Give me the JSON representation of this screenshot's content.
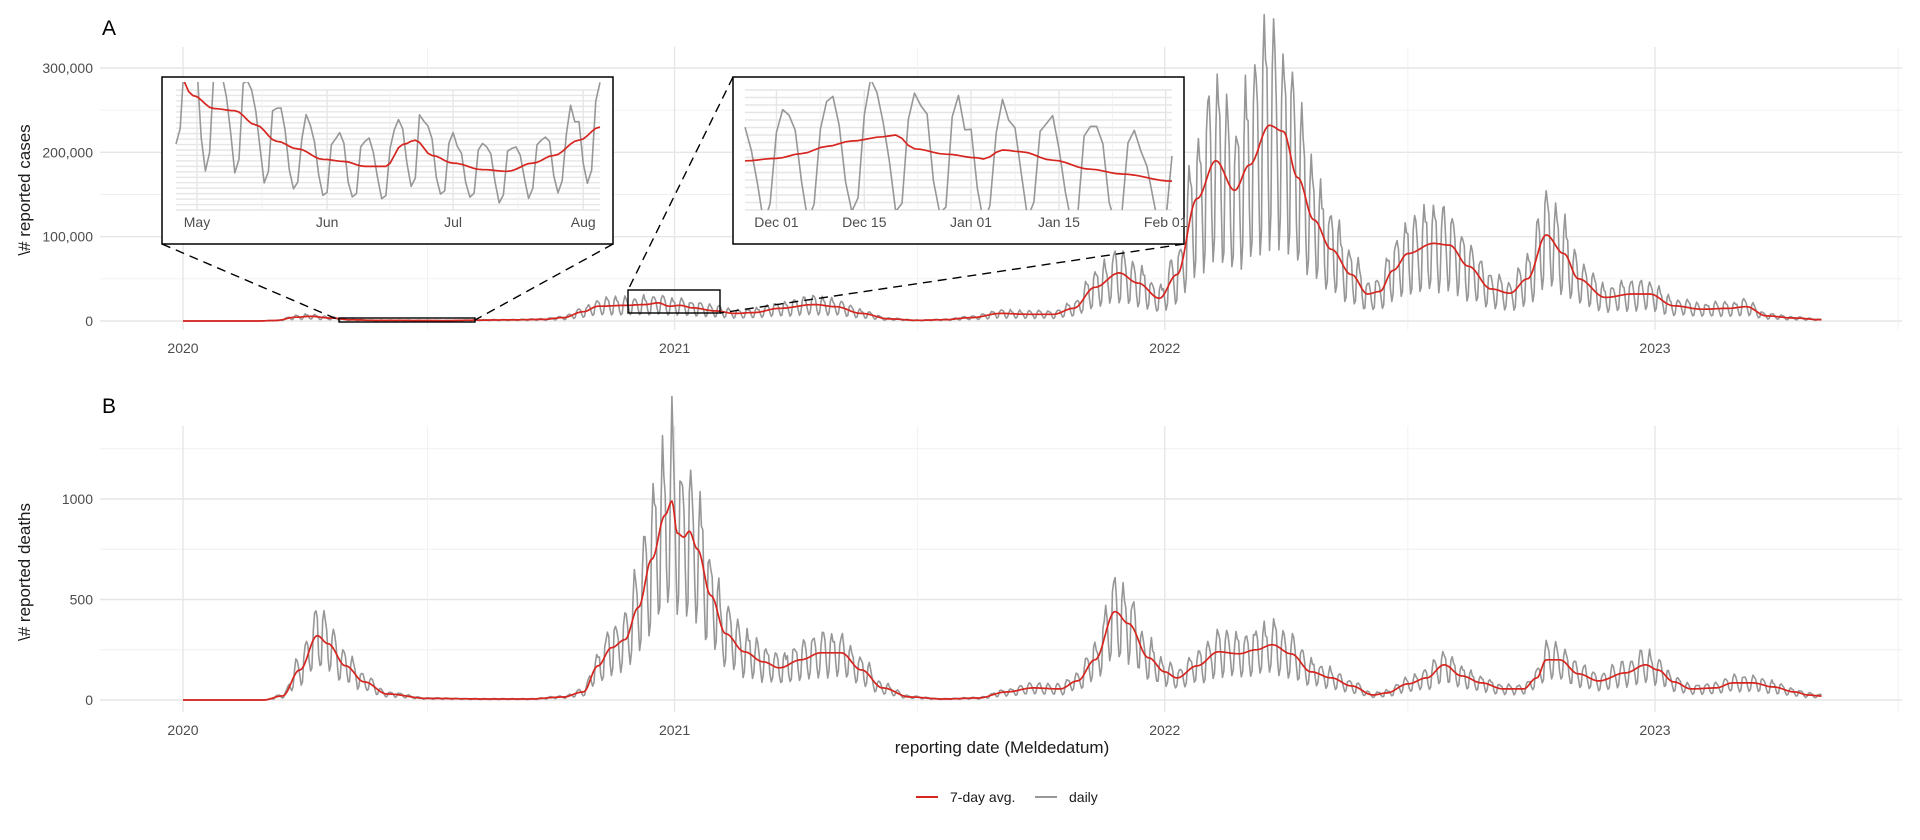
{
  "chart_data": [
    {
      "id": "A",
      "type": "line",
      "panel_label": "A",
      "title": "",
      "xlabel": "",
      "ylabel": "\\# reported cases",
      "x_type": "date",
      "xlim": [
        "2019-10-01",
        "2024-03-31"
      ],
      "ylim": [
        -12000,
        330000
      ],
      "yticks": [
        0,
        100000,
        200000,
        300000
      ],
      "ytick_labels": [
        "0",
        "100,000",
        "200,000",
        "300,000"
      ],
      "xticks": [
        "2020-01-01",
        "2021-01-01",
        "2022-01-01",
        "2023-01-01"
      ],
      "xtick_labels": [
        "2020",
        "2021",
        "2022",
        "2023"
      ],
      "grid": true,
      "weekly_amplitude": 0.55,
      "series": [
        {
          "name": "7-day avg.",
          "color": "#d7251f",
          "points": [
            [
              "2020-01-01",
              0
            ],
            [
              "2020-02-25",
              0
            ],
            [
              "2020-03-10",
              600
            ],
            [
              "2020-03-25",
              4500
            ],
            [
              "2020-04-05",
              5500
            ],
            [
              "2020-04-20",
              3500
            ],
            [
              "2020-05-05",
              1400
            ],
            [
              "2020-05-25",
              700
            ],
            [
              "2020-06-20",
              650
            ],
            [
              "2020-07-15",
              500
            ],
            [
              "2020-08-10",
              1100
            ],
            [
              "2020-09-01",
              1300
            ],
            [
              "2020-09-25",
              1900
            ],
            [
              "2020-10-10",
              4000
            ],
            [
              "2020-10-25",
              11000
            ],
            [
              "2020-11-05",
              17500
            ],
            [
              "2020-11-25",
              18500
            ],
            [
              "2020-12-10",
              19500
            ],
            [
              "2020-12-20",
              21500
            ],
            [
              "2020-12-28",
              17500
            ],
            [
              "2021-01-05",
              18500
            ],
            [
              "2021-01-15",
              15500
            ],
            [
              "2021-01-31",
              12000
            ],
            [
              "2021-02-15",
              9000
            ],
            [
              "2021-03-01",
              10000
            ],
            [
              "2021-03-20",
              15000
            ],
            [
              "2021-04-15",
              19500
            ],
            [
              "2021-05-01",
              17000
            ],
            [
              "2021-05-20",
              9000
            ],
            [
              "2021-06-10",
              2500
            ],
            [
              "2021-07-01",
              800
            ],
            [
              "2021-07-20",
              1500
            ],
            [
              "2021-08-10",
              4000
            ],
            [
              "2021-09-01",
              9000
            ],
            [
              "2021-09-20",
              8000
            ],
            [
              "2021-10-10",
              8000
            ],
            [
              "2021-10-25",
              15000
            ],
            [
              "2021-11-10",
              40000
            ],
            [
              "2021-11-28",
              57000
            ],
            [
              "2021-12-12",
              45000
            ],
            [
              "2021-12-28",
              27000
            ],
            [
              "2022-01-10",
              55000
            ],
            [
              "2022-01-25",
              145000
            ],
            [
              "2022-02-08",
              190000
            ],
            [
              "2022-02-22",
              155000
            ],
            [
              "2022-03-05",
              185000
            ],
            [
              "2022-03-20",
              232000
            ],
            [
              "2022-03-30",
              225000
            ],
            [
              "2022-04-10",
              170000
            ],
            [
              "2022-04-22",
              120000
            ],
            [
              "2022-05-05",
              85000
            ],
            [
              "2022-05-20",
              55000
            ],
            [
              "2022-06-01",
              32000
            ],
            [
              "2022-06-10",
              35000
            ],
            [
              "2022-06-20",
              60000
            ],
            [
              "2022-07-01",
              80000
            ],
            [
              "2022-07-20",
              92000
            ],
            [
              "2022-08-01",
              90000
            ],
            [
              "2022-08-15",
              65000
            ],
            [
              "2022-09-01",
              38000
            ],
            [
              "2022-09-15",
              33000
            ],
            [
              "2022-09-28",
              50000
            ],
            [
              "2022-10-12",
              102000
            ],
            [
              "2022-10-25",
              80000
            ],
            [
              "2022-11-05",
              50000
            ],
            [
              "2022-11-25",
              28000
            ],
            [
              "2022-12-15",
              32000
            ],
            [
              "2022-12-28",
              32000
            ],
            [
              "2023-01-15",
              18000
            ],
            [
              "2023-02-05",
              14000
            ],
            [
              "2023-02-25",
              15000
            ],
            [
              "2023-03-10",
              17000
            ],
            [
              "2023-03-25",
              6000
            ],
            [
              "2023-04-15",
              3500
            ],
            [
              "2023-05-05",
              1500
            ]
          ]
        },
        {
          "name": "daily",
          "color": "#979797",
          "derived_from": "7-day avg. with weekday reporting pattern"
        }
      ],
      "insets": [
        {
          "id": "A1",
          "xlim": [
            "2020-04-26",
            "2020-08-05"
          ],
          "xticks": [
            "2020-05-01",
            "2020-06-01",
            "2020-07-01",
            "2020-08-01"
          ],
          "xtick_labels": [
            "May",
            "Jun",
            "Jul",
            "Aug"
          ],
          "ylim": [
            200,
            1300
          ],
          "points_avg": [
            [
              "2020-04-26",
              1500
            ],
            [
              "2020-04-30",
              1250
            ],
            [
              "2020-05-05",
              1130
            ],
            [
              "2020-05-10",
              1110
            ],
            [
              "2020-05-15",
              980
            ],
            [
              "2020-05-20",
              830
            ],
            [
              "2020-05-25",
              760
            ],
            [
              "2020-05-31",
              665
            ],
            [
              "2020-06-05",
              645
            ],
            [
              "2020-06-10",
              600
            ],
            [
              "2020-06-15",
              600
            ],
            [
              "2020-06-19",
              800
            ],
            [
              "2020-06-22",
              840
            ],
            [
              "2020-06-26",
              700
            ],
            [
              "2020-07-01",
              630
            ],
            [
              "2020-07-08",
              570
            ],
            [
              "2020-07-14",
              555
            ],
            [
              "2020-07-20",
              630
            ],
            [
              "2020-07-25",
              700
            ],
            [
              "2020-07-31",
              840
            ],
            [
              "2020-08-05",
              960
            ]
          ]
        },
        {
          "id": "A2",
          "xlim": [
            "2020-11-26",
            "2021-02-02"
          ],
          "xticks": [
            "2020-12-01",
            "2020-12-15",
            "2021-01-01",
            "2021-01-15",
            "2021-02-01"
          ],
          "xtick_labels": [
            "Dec 01",
            "Dec 15",
            "Jan 01",
            "Jan 15",
            "Feb 01"
          ],
          "ylim": [
            10000,
            30000
          ],
          "points_avg": [
            [
              "2020-11-26",
              18200
            ],
            [
              "2020-12-01",
              18600
            ],
            [
              "2020-12-05",
              19400
            ],
            [
              "2020-12-09",
              20600
            ],
            [
              "2020-12-13",
              21500
            ],
            [
              "2020-12-18",
              22200
            ],
            [
              "2020-12-20",
              22500
            ],
            [
              "2020-12-23",
              20200
            ],
            [
              "2020-12-28",
              19300
            ],
            [
              "2021-01-02",
              18700
            ],
            [
              "2021-01-03",
              18500
            ],
            [
              "2021-01-06",
              20000
            ],
            [
              "2021-01-09",
              19700
            ],
            [
              "2021-01-14",
              18300
            ],
            [
              "2021-01-20",
              16800
            ],
            [
              "2021-01-25",
              16000
            ],
            [
              "2021-02-02",
              14800
            ]
          ]
        }
      ]
    },
    {
      "id": "B",
      "type": "line",
      "panel_label": "B",
      "title": "",
      "xlabel": "reporting date (Meldedatum)",
      "ylabel": "\\# reported deaths",
      "x_type": "date",
      "xlim": [
        "2019-10-01",
        "2024-03-31"
      ],
      "ylim": [
        -60,
        1360
      ],
      "yticks": [
        0,
        500,
        1000
      ],
      "ytick_labels": [
        "0",
        "500",
        "1000"
      ],
      "xticks": [
        "2020-01-01",
        "2021-01-01",
        "2022-01-01",
        "2023-01-01"
      ],
      "xtick_labels": [
        "2020",
        "2021",
        "2022",
        "2023"
      ],
      "grid": true,
      "weekly_amplitude": 0.45,
      "series": [
        {
          "name": "7-day avg.",
          "color": "#d7251f",
          "points": [
            [
              "2020-01-01",
              0
            ],
            [
              "2020-03-01",
              0
            ],
            [
              "2020-03-15",
              20
            ],
            [
              "2020-03-28",
              150
            ],
            [
              "2020-04-10",
              320
            ],
            [
              "2020-04-18",
              280
            ],
            [
              "2020-05-01",
              170
            ],
            [
              "2020-05-15",
              90
            ],
            [
              "2020-06-01",
              30
            ],
            [
              "2020-07-01",
              8
            ],
            [
              "2020-08-15",
              5
            ],
            [
              "2020-09-15",
              5
            ],
            [
              "2020-10-10",
              15
            ],
            [
              "2020-10-25",
              40
            ],
            [
              "2020-11-05",
              170
            ],
            [
              "2020-11-15",
              260
            ],
            [
              "2020-11-25",
              300
            ],
            [
              "2020-12-05",
              460
            ],
            [
              "2020-12-15",
              700
            ],
            [
              "2020-12-25",
              920
            ],
            [
              "2020-12-30",
              990
            ],
            [
              "2021-01-03",
              830
            ],
            [
              "2021-01-08",
              810
            ],
            [
              "2021-01-12",
              840
            ],
            [
              "2021-01-18",
              750
            ],
            [
              "2021-01-28",
              520
            ],
            [
              "2021-02-08",
              330
            ],
            [
              "2021-02-22",
              240
            ],
            [
              "2021-03-08",
              190
            ],
            [
              "2021-03-20",
              160
            ],
            [
              "2021-04-05",
              200
            ],
            [
              "2021-04-20",
              235
            ],
            [
              "2021-05-05",
              235
            ],
            [
              "2021-05-20",
              150
            ],
            [
              "2021-06-05",
              60
            ],
            [
              "2021-06-25",
              15
            ],
            [
              "2021-07-20",
              5
            ],
            [
              "2021-08-15",
              10
            ],
            [
              "2021-09-05",
              40
            ],
            [
              "2021-09-25",
              60
            ],
            [
              "2021-10-15",
              55
            ],
            [
              "2021-10-28",
              95
            ],
            [
              "2021-11-10",
              200
            ],
            [
              "2021-11-25",
              440
            ],
            [
              "2021-12-05",
              380
            ],
            [
              "2021-12-20",
              210
            ],
            [
              "2022-01-01",
              140
            ],
            [
              "2022-01-10",
              110
            ],
            [
              "2022-01-25",
              170
            ],
            [
              "2022-02-10",
              240
            ],
            [
              "2022-02-25",
              230
            ],
            [
              "2022-03-10",
              250
            ],
            [
              "2022-03-22",
              275
            ],
            [
              "2022-04-05",
              230
            ],
            [
              "2022-04-20",
              140
            ],
            [
              "2022-05-05",
              110
            ],
            [
              "2022-05-20",
              70
            ],
            [
              "2022-06-05",
              25
            ],
            [
              "2022-06-15",
              35
            ],
            [
              "2022-07-01",
              80
            ],
            [
              "2022-07-15",
              110
            ],
            [
              "2022-07-28",
              175
            ],
            [
              "2022-08-10",
              120
            ],
            [
              "2022-08-25",
              85
            ],
            [
              "2022-09-10",
              55
            ],
            [
              "2022-09-25",
              55
            ],
            [
              "2022-10-05",
              110
            ],
            [
              "2022-10-12",
              200
            ],
            [
              "2022-10-22",
              200
            ],
            [
              "2022-11-05",
              130
            ],
            [
              "2022-11-20",
              95
            ],
            [
              "2022-12-10",
              135
            ],
            [
              "2022-12-25",
              175
            ],
            [
              "2023-01-03",
              150
            ],
            [
              "2023-01-15",
              90
            ],
            [
              "2023-01-28",
              55
            ],
            [
              "2023-02-15",
              60
            ],
            [
              "2023-02-28",
              85
            ],
            [
              "2023-03-15",
              85
            ],
            [
              "2023-03-30",
              65
            ],
            [
              "2023-04-15",
              40
            ],
            [
              "2023-04-25",
              25
            ],
            [
              "2023-05-05",
              20
            ]
          ]
        },
        {
          "name": "daily",
          "color": "#979797",
          "derived_from": "7-day avg. with weekday reporting pattern"
        }
      ]
    }
  ],
  "legend": {
    "position": "bottom",
    "items": [
      {
        "label": "7-day avg.",
        "color": "#d7251f"
      },
      {
        "label": "daily",
        "color": "#979797"
      }
    ]
  }
}
